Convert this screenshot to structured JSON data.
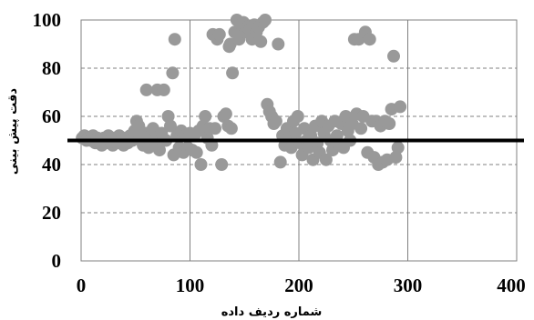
{
  "chart_data": {
    "type": "scatter",
    "title": "",
    "xlabel": "شماره ردیف داده",
    "ylabel": "دقت پیش بینی",
    "xlim": [
      0,
      400
    ],
    "ylim": [
      0,
      100
    ],
    "xticks": [
      0,
      100,
      200,
      300,
      400
    ],
    "yticks": [
      0,
      20,
      40,
      60,
      80,
      100
    ],
    "x_tick_labels": [
      "0",
      "100",
      "200",
      "300",
      "400"
    ],
    "y_tick_labels": [
      "0",
      "20",
      "40",
      "60",
      "80",
      "100"
    ],
    "grid": {
      "vertical": "solid",
      "horizontal": "dashed"
    },
    "reference_line": {
      "y": 50
    },
    "colors": {
      "points": "#999999",
      "reference_line": "#000000",
      "grid": "#808080"
    },
    "series": [
      {
        "points": [
          [
            1,
            51
          ],
          [
            3,
            52
          ],
          [
            5,
            50
          ],
          [
            7,
            51
          ],
          [
            9,
            50
          ],
          [
            11,
            52
          ],
          [
            13,
            49
          ],
          [
            15,
            51
          ],
          [
            17,
            50
          ],
          [
            19,
            48
          ],
          [
            21,
            51
          ],
          [
            23,
            49
          ],
          [
            25,
            52
          ],
          [
            27,
            50
          ],
          [
            29,
            48
          ],
          [
            31,
            51
          ],
          [
            33,
            49
          ],
          [
            35,
            52
          ],
          [
            37,
            50
          ],
          [
            39,
            48
          ],
          [
            41,
            51
          ],
          [
            43,
            49
          ],
          [
            45,
            52
          ],
          [
            47,
            50
          ],
          [
            49,
            54
          ],
          [
            51,
            58
          ],
          [
            53,
            56
          ],
          [
            55,
            51
          ],
          [
            57,
            48
          ],
          [
            59,
            53
          ],
          [
            60,
            71
          ],
          [
            62,
            47
          ],
          [
            64,
            52
          ],
          [
            66,
            55
          ],
          [
            68,
            50
          ],
          [
            70,
            71
          ],
          [
            72,
            46
          ],
          [
            74,
            53
          ],
          [
            76,
            71
          ],
          [
            78,
            50
          ],
          [
            80,
            60
          ],
          [
            82,
            56
          ],
          [
            84,
            78
          ],
          [
            85,
            44
          ],
          [
            86,
            92
          ],
          [
            88,
            52
          ],
          [
            90,
            47
          ],
          [
            92,
            54
          ],
          [
            94,
            45
          ],
          [
            96,
            52
          ],
          [
            98,
            47
          ],
          [
            100,
            53
          ],
          [
            102,
            46
          ],
          [
            104,
            52
          ],
          [
            106,
            45
          ],
          [
            108,
            54
          ],
          [
            110,
            40
          ],
          [
            112,
            56
          ],
          [
            114,
            60
          ],
          [
            116,
            51
          ],
          [
            118,
            55
          ],
          [
            120,
            48
          ],
          [
            121,
            94
          ],
          [
            123,
            55
          ],
          [
            125,
            92
          ],
          [
            127,
            94
          ],
          [
            129,
            40
          ],
          [
            131,
            60
          ],
          [
            133,
            61
          ],
          [
            135,
            56
          ],
          [
            136,
            89
          ],
          [
            137,
            90
          ],
          [
            138,
            55
          ],
          [
            139,
            78
          ],
          [
            141,
            95
          ],
          [
            143,
            100
          ],
          [
            145,
            92
          ],
          [
            147,
            98
          ],
          [
            149,
            99
          ],
          [
            151,
            95
          ],
          [
            153,
            97
          ],
          [
            155,
            96
          ],
          [
            157,
            92
          ],
          [
            159,
            98
          ],
          [
            161,
            95
          ],
          [
            163,
            97
          ],
          [
            165,
            91
          ],
          [
            167,
            99
          ],
          [
            169,
            100
          ],
          [
            171,
            65
          ],
          [
            173,
            62
          ],
          [
            175,
            60
          ],
          [
            177,
            57
          ],
          [
            179,
            58
          ],
          [
            181,
            90
          ],
          [
            183,
            41
          ],
          [
            185,
            52
          ],
          [
            187,
            48
          ],
          [
            189,
            55
          ],
          [
            191,
            50
          ],
          [
            193,
            47
          ],
          [
            195,
            58
          ],
          [
            197,
            53
          ],
          [
            199,
            60
          ],
          [
            201,
            49
          ],
          [
            203,
            44
          ],
          [
            205,
            55
          ],
          [
            207,
            50
          ],
          [
            209,
            47
          ],
          [
            211,
            52
          ],
          [
            213,
            42
          ],
          [
            215,
            56
          ],
          [
            217,
            49
          ],
          [
            219,
            45
          ],
          [
            221,
            58
          ],
          [
            223,
            53
          ],
          [
            225,
            42
          ],
          [
            227,
            56
          ],
          [
            229,
            50
          ],
          [
            231,
            46
          ],
          [
            233,
            58
          ],
          [
            235,
            52
          ],
          [
            237,
            48
          ],
          [
            239,
            57
          ],
          [
            241,
            47
          ],
          [
            243,
            60
          ],
          [
            245,
            54
          ],
          [
            247,
            50
          ],
          [
            249,
            57
          ],
          [
            251,
            92
          ],
          [
            253,
            61
          ],
          [
            255,
            92
          ],
          [
            257,
            55
          ],
          [
            259,
            60
          ],
          [
            261,
            95
          ],
          [
            263,
            45
          ],
          [
            265,
            92
          ],
          [
            267,
            58
          ],
          [
            269,
            43
          ],
          [
            271,
            58
          ],
          [
            273,
            40
          ],
          [
            275,
            56
          ],
          [
            277,
            41
          ],
          [
            279,
            58
          ],
          [
            281,
            42
          ],
          [
            283,
            57
          ],
          [
            285,
            63
          ],
          [
            287,
            85
          ],
          [
            289,
            43
          ],
          [
            291,
            47
          ],
          [
            293,
            64
          ]
        ]
      }
    ]
  }
}
